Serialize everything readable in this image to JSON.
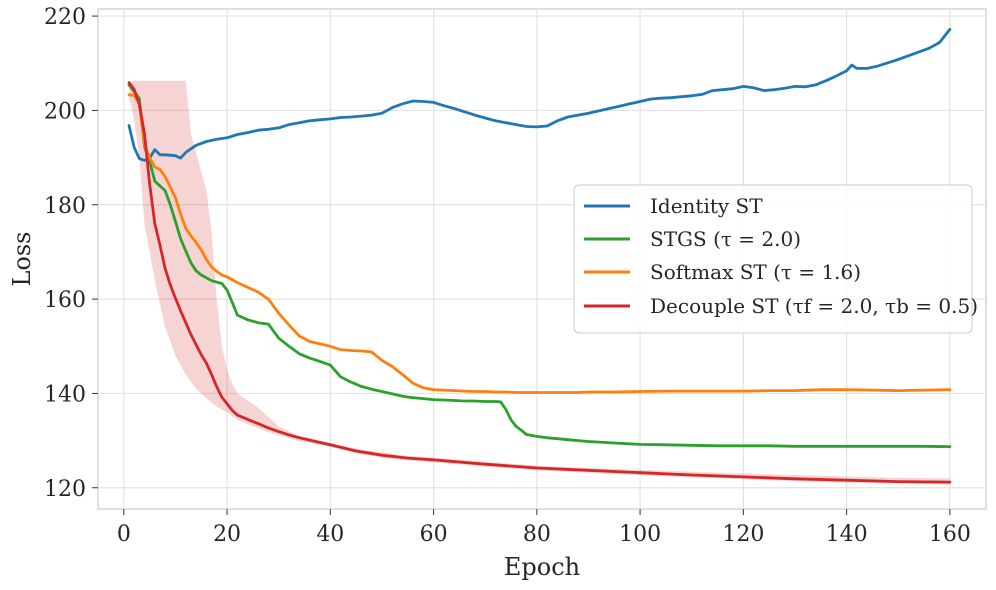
{
  "chart_data": {
    "type": "line",
    "title": "",
    "xlabel": "Epoch",
    "ylabel": "Loss",
    "xlim": [
      -5,
      167
    ],
    "ylim": [
      115.5,
      221.5
    ],
    "xticks": [
      0,
      20,
      40,
      60,
      80,
      100,
      120,
      140,
      160
    ],
    "yticks": [
      120,
      140,
      160,
      180,
      200,
      220
    ],
    "grid": true,
    "legend_position": "center-right",
    "series": [
      {
        "name": "Identity ST",
        "legend_label": "Identity ST",
        "color": "#1f77b4",
        "x": [
          1,
          2,
          3,
          4,
          5,
          6,
          7,
          8,
          10,
          11,
          12,
          14,
          16,
          18,
          20,
          22,
          24,
          26,
          28,
          30,
          32,
          34,
          36,
          38,
          40,
          42,
          44,
          46,
          48,
          50,
          52,
          54,
          56,
          58,
          60,
          62,
          64,
          66,
          68,
          70,
          72,
          74,
          76,
          78,
          80,
          82,
          84,
          86,
          88,
          90,
          92,
          94,
          96,
          98,
          100,
          102,
          104,
          106,
          108,
          110,
          112,
          114,
          116,
          118,
          120,
          122,
          124,
          126,
          128,
          130,
          132,
          134,
          136,
          138,
          140,
          141,
          142,
          144,
          146,
          148,
          150,
          152,
          154,
          156,
          158,
          160
        ],
        "y": [
          196.8,
          192.2,
          189.8,
          189.4,
          189.9,
          191.7,
          190.6,
          190.6,
          190.4,
          189.9,
          191.1,
          192.6,
          193.4,
          193.9,
          194.2,
          194.9,
          195.3,
          195.8,
          196.0,
          196.3,
          197.0,
          197.4,
          197.8,
          198.0,
          198.2,
          198.5,
          198.6,
          198.8,
          199.0,
          199.4,
          200.6,
          201.4,
          202.0,
          201.9,
          201.7,
          201.0,
          200.4,
          199.7,
          199.0,
          198.4,
          197.8,
          197.4,
          197.0,
          196.6,
          196.5,
          196.7,
          197.8,
          198.6,
          199.0,
          199.4,
          199.9,
          200.4,
          200.9,
          201.4,
          201.9,
          202.4,
          202.6,
          202.7,
          202.9,
          203.1,
          203.4,
          204.2,
          204.4,
          204.6,
          205.1,
          204.8,
          204.2,
          204.4,
          204.7,
          205.1,
          205.0,
          205.4,
          206.3,
          207.3,
          208.4,
          209.6,
          208.9,
          208.9,
          209.4,
          210.1,
          210.8,
          211.6,
          212.4,
          213.2,
          214.4,
          217.2
        ]
      },
      {
        "name": "STGS",
        "legend_label": "STGS (τ = 2.0)",
        "color": "#2ca02c",
        "x": [
          1,
          2,
          3,
          4,
          5,
          6,
          7,
          8,
          9,
          10,
          11,
          12,
          13,
          14,
          15,
          16,
          17,
          18,
          19,
          20,
          21,
          22,
          24,
          26,
          28,
          30,
          32,
          34,
          36,
          38,
          40,
          42,
          44,
          46,
          48,
          50,
          52,
          54,
          56,
          58,
          60,
          62,
          64,
          66,
          68,
          70,
          72,
          73,
          74,
          75,
          76,
          77,
          78,
          80,
          82,
          84,
          86,
          88,
          90,
          95,
          100,
          105,
          110,
          115,
          120,
          125,
          130,
          135,
          140,
          145,
          150,
          155,
          160
        ],
        "y": [
          205.4,
          204.0,
          202.5,
          192.3,
          189.3,
          185.0,
          184.0,
          183.0,
          180.0,
          176.5,
          172.8,
          170.2,
          167.7,
          166.0,
          165.1,
          164.5,
          163.9,
          163.6,
          163.3,
          161.9,
          159.3,
          156.6,
          155.6,
          155.0,
          154.7,
          151.7,
          150.0,
          148.4,
          147.5,
          146.8,
          146.0,
          143.5,
          142.4,
          141.5,
          140.9,
          140.4,
          139.9,
          139.4,
          139.1,
          138.9,
          138.7,
          138.6,
          138.5,
          138.4,
          138.4,
          138.3,
          138.3,
          138.2,
          136.6,
          134.4,
          133.0,
          132.2,
          131.3,
          130.9,
          130.6,
          130.4,
          130.2,
          130.0,
          129.8,
          129.5,
          129.2,
          129.1,
          129.0,
          128.9,
          128.9,
          128.9,
          128.8,
          128.8,
          128.8,
          128.8,
          128.8,
          128.8,
          128.7
        ]
      },
      {
        "name": "Softmax ST",
        "legend_label": "Softmax ST (τ = 1.6)",
        "color": "#ff7f0e",
        "x": [
          1,
          2,
          3,
          4,
          5,
          6,
          7,
          8,
          9,
          10,
          11,
          12,
          13,
          14,
          15,
          16,
          17,
          18,
          19,
          20,
          22,
          24,
          26,
          28,
          30,
          32,
          34,
          36,
          38,
          40,
          42,
          44,
          46,
          48,
          50,
          52,
          54,
          56,
          58,
          60,
          62,
          64,
          66,
          68,
          70,
          72,
          74,
          76,
          78,
          80,
          82,
          84,
          86,
          88,
          90,
          95,
          100,
          105,
          110,
          115,
          120,
          125,
          130,
          135,
          140,
          145,
          150,
          155,
          160
        ],
        "y": [
          203.3,
          203.2,
          201.5,
          192.6,
          190.0,
          188.0,
          187.5,
          186.0,
          183.7,
          181.5,
          178.0,
          175.0,
          173.4,
          172.0,
          170.4,
          168.4,
          166.8,
          165.9,
          165.1,
          164.7,
          163.5,
          162.5,
          161.5,
          160.0,
          157.0,
          154.5,
          152.2,
          151.0,
          150.5,
          150.0,
          149.3,
          149.1,
          149.0,
          148.8,
          147.0,
          145.7,
          144.0,
          142.2,
          141.2,
          140.8,
          140.7,
          140.6,
          140.5,
          140.4,
          140.4,
          140.3,
          140.3,
          140.2,
          140.2,
          140.2,
          140.2,
          140.2,
          140.2,
          140.2,
          140.3,
          140.3,
          140.4,
          140.5,
          140.5,
          140.5,
          140.5,
          140.6,
          140.6,
          140.8,
          140.8,
          140.7,
          140.6,
          140.7,
          140.8
        ]
      },
      {
        "name": "Decouple ST",
        "legend_label": "Decouple ST (τf = 2.0, τb = 0.5)",
        "color": "#d62728",
        "x": [
          1,
          2,
          3,
          4,
          5,
          6,
          7,
          8,
          9,
          10,
          11,
          12,
          13,
          14,
          15,
          16,
          17,
          18,
          19,
          20,
          21,
          22,
          24,
          26,
          28,
          30,
          32,
          34,
          36,
          38,
          40,
          45,
          50,
          55,
          60,
          70,
          80,
          90,
          100,
          110,
          120,
          130,
          140,
          150,
          160
        ],
        "y": [
          205.9,
          204.5,
          201.3,
          195.0,
          184.5,
          176.0,
          171.4,
          166.5,
          163.0,
          160.2,
          157.5,
          155.0,
          152.5,
          150.3,
          148.2,
          146.4,
          144.0,
          141.4,
          139.2,
          137.8,
          136.4,
          135.4,
          134.5,
          133.6,
          132.7,
          131.9,
          131.2,
          130.6,
          130.1,
          129.6,
          129.1,
          127.8,
          126.9,
          126.3,
          125.9,
          125.0,
          124.2,
          123.7,
          123.2,
          122.7,
          122.3,
          121.9,
          121.6,
          121.3,
          121.2
        ],
        "band": {
          "x": [
            1,
            2,
            3,
            4,
            5,
            6,
            7,
            8,
            9,
            10,
            11,
            12,
            13,
            14,
            15,
            16,
            17,
            18,
            19,
            20,
            21,
            22,
            24,
            26,
            28,
            30,
            32,
            34,
            36,
            38,
            40,
            45,
            50,
            55,
            60,
            70,
            80,
            90,
            100,
            110,
            120,
            130,
            140,
            150,
            160
          ],
          "upper": [
            206.0,
            206.3,
            206.3,
            206.3,
            206.3,
            206.3,
            206.3,
            206.3,
            206.3,
            206.3,
            206.3,
            206.3,
            195.0,
            191.0,
            187.0,
            183.0,
            174.0,
            160.0,
            150.0,
            145.0,
            142.0,
            140.0,
            138.5,
            137.0,
            135.0,
            133.0,
            132.0,
            131.0,
            130.5,
            130.0,
            129.5,
            128.3,
            127.5,
            126.8,
            126.4,
            125.5,
            124.7,
            124.2,
            123.8,
            123.4,
            123.0,
            122.7,
            122.4,
            122.1,
            122.0
          ],
          "lower": [
            203.0,
            198.0,
            190.0,
            176.0,
            170.0,
            164.0,
            159.0,
            154.0,
            151.0,
            148.0,
            146.0,
            144.0,
            142.5,
            141.0,
            140.0,
            139.0,
            138.0,
            137.2,
            136.6,
            136.0,
            135.2,
            134.4,
            133.5,
            132.6,
            131.8,
            131.1,
            130.5,
            129.9,
            129.5,
            129.1,
            128.7,
            127.3,
            126.4,
            125.8,
            125.4,
            124.5,
            123.7,
            123.2,
            122.7,
            122.2,
            121.8,
            121.4,
            121.1,
            120.9,
            120.7
          ]
        }
      }
    ]
  }
}
